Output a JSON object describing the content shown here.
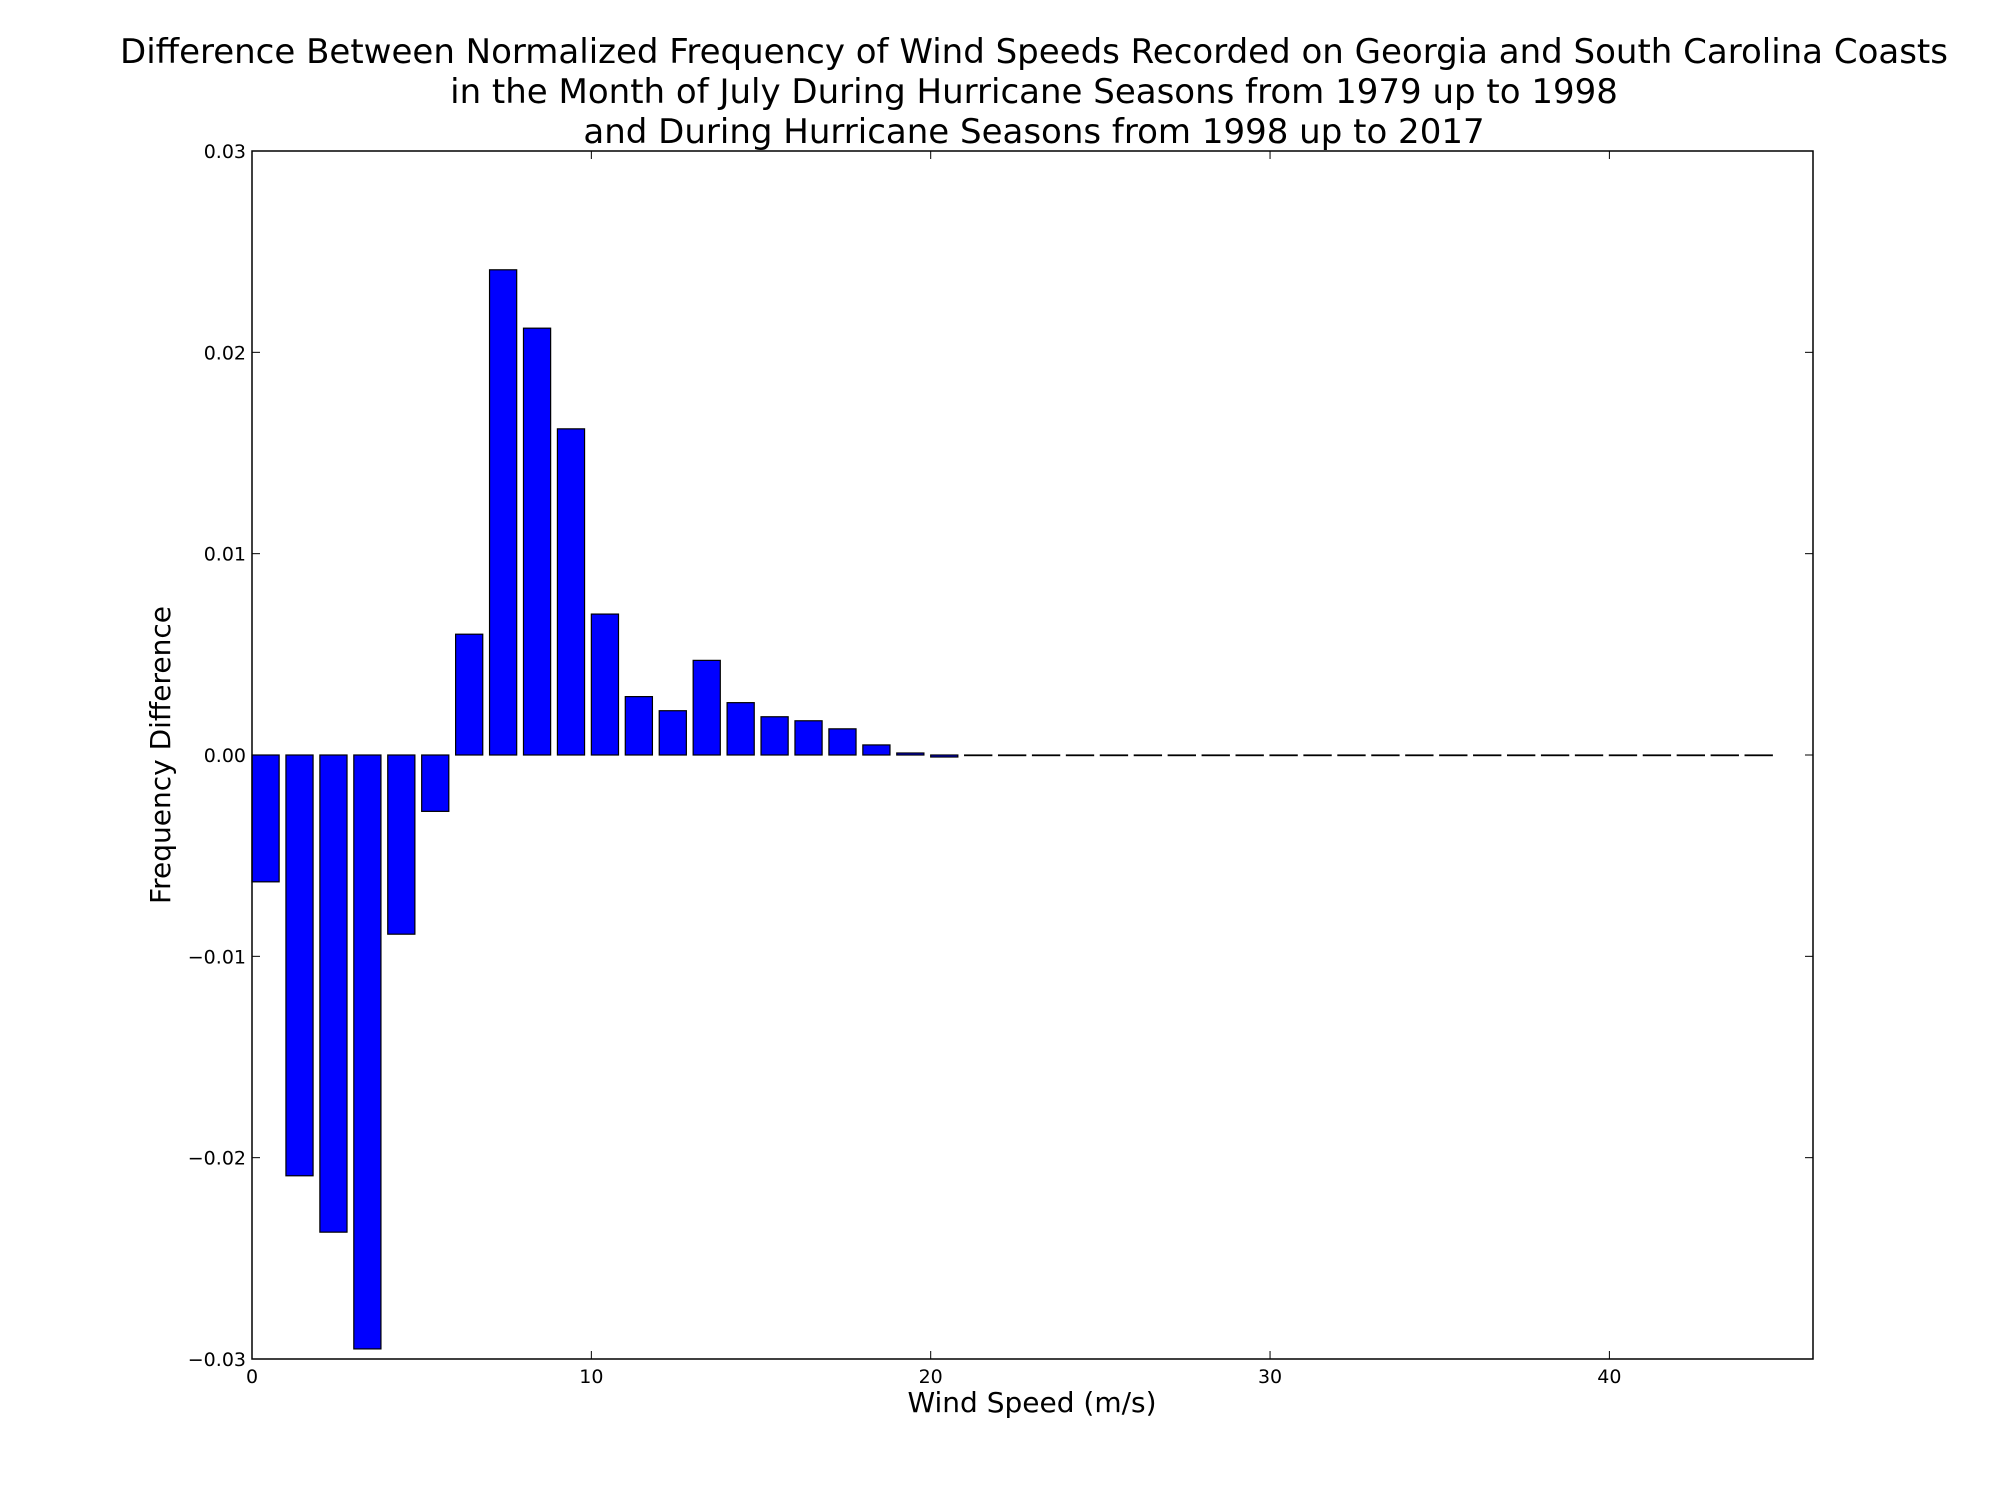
{
  "chart_data": {
    "type": "bar",
    "title_lines": [
      "Difference Between Normalized Frequency of Wind Speeds Recorded on Georgia and South Carolina Coasts",
      "in the Month of July During Hurricane Seasons from 1979 up to 1998",
      "and During Hurricane Seasons from 1998 up to 2017"
    ],
    "xlabel": "Wind Speed (m/s)",
    "ylabel": "Frequency Difference",
    "xlim": [
      0,
      46
    ],
    "ylim": [
      -0.03,
      0.03
    ],
    "xticks": [
      0,
      10,
      20,
      30,
      40
    ],
    "xtick_labels": [
      "0",
      "10",
      "20",
      "30",
      "40"
    ],
    "yticks": [
      -0.03,
      -0.02,
      -0.01,
      0.0,
      0.01,
      0.02,
      0.03
    ],
    "ytick_labels": [
      "−0.03",
      "−0.02",
      "−0.01",
      "0.00",
      "0.01",
      "0.02",
      "0.03"
    ],
    "bar_width": 0.8,
    "bar_color": "#0000ff",
    "edge_color": "#000000",
    "grid": false,
    "legend": "none",
    "x": [
      0,
      1,
      2,
      3,
      4,
      5,
      6,
      7,
      8,
      9,
      10,
      11,
      12,
      13,
      14,
      15,
      16,
      17,
      18,
      19,
      20,
      21,
      22,
      23,
      24,
      25,
      26,
      27,
      28,
      29,
      30,
      31,
      32,
      33,
      34,
      35,
      36,
      37,
      38,
      39,
      40,
      41,
      42,
      43,
      44
    ],
    "values": [
      -0.0063,
      -0.0209,
      -0.0237,
      -0.0295,
      -0.0089,
      -0.0028,
      0.006,
      0.0241,
      0.0212,
      0.0162,
      0.007,
      0.0029,
      0.0022,
      0.0047,
      0.0026,
      0.0019,
      0.0017,
      0.0013,
      0.0005,
      0.0001,
      -0.0001,
      0,
      0,
      0,
      0,
      0,
      0,
      0,
      0,
      0,
      0,
      0,
      0,
      0,
      0,
      0,
      0,
      0,
      0,
      0,
      0,
      0,
      0,
      0,
      0
    ]
  }
}
